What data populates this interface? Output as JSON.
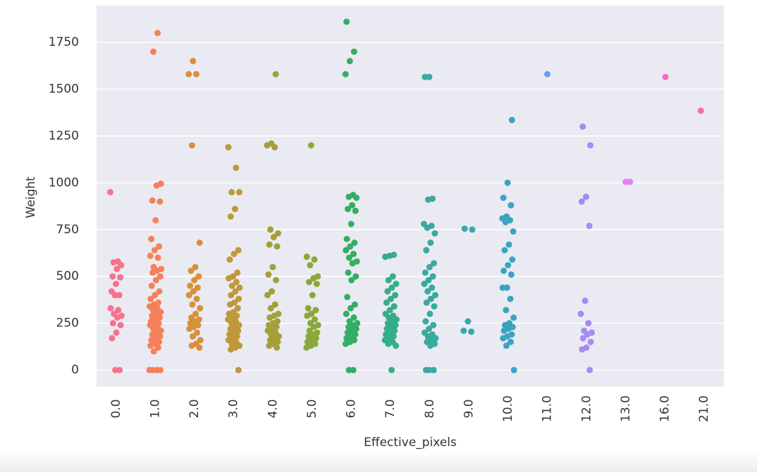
{
  "chart_data": {
    "type": "strip",
    "xlabel": "Effective_pixels",
    "ylabel": "Weight",
    "categories": [
      "0.0",
      "1.0",
      "2.0",
      "3.0",
      "4.0",
      "5.0",
      "6.0",
      "7.0",
      "8.0",
      "9.0",
      "10.0",
      "11.0",
      "12.0",
      "13.0",
      "16.0",
      "21.0"
    ],
    "colors": [
      "#f7728a",
      "#f5815a",
      "#d8903a",
      "#c0983a",
      "#a3a03a",
      "#8aa83a",
      "#34ae62",
      "#36ad8a",
      "#38aaa0",
      "#39a8ae",
      "#3ba3c2",
      "#6a9ef0",
      "#a58bf4",
      "#e57ef2",
      "#f56cc6",
      "#f66fa5"
    ],
    "values": [
      [
        950,
        580,
        575,
        560,
        540,
        500,
        495,
        460,
        420,
        400,
        400,
        330,
        320,
        300,
        290,
        280,
        250,
        240,
        200,
        170,
        0,
        0
      ],
      [
        1800,
        1700,
        995,
        985,
        905,
        900,
        800,
        700,
        660,
        640,
        610,
        600,
        550,
        540,
        530,
        520,
        500,
        480,
        450,
        420,
        400,
        380,
        360,
        350,
        340,
        330,
        320,
        310,
        300,
        290,
        280,
        270,
        260,
        250,
        250,
        240,
        230,
        220,
        210,
        200,
        190,
        180,
        170,
        160,
        150,
        140,
        130,
        120,
        100,
        0,
        0,
        0,
        0
      ],
      [
        1650,
        1580,
        1580,
        1200,
        680,
        550,
        530,
        500,
        480,
        450,
        440,
        420,
        400,
        380,
        350,
        330,
        300,
        280,
        270,
        260,
        250,
        240,
        230,
        220,
        200,
        180,
        160,
        140,
        130,
        120
      ],
      [
        1190,
        1080,
        950,
        950,
        860,
        820,
        640,
        620,
        590,
        520,
        500,
        490,
        470,
        450,
        440,
        420,
        400,
        380,
        360,
        350,
        330,
        310,
        300,
        290,
        280,
        270,
        260,
        250,
        240,
        230,
        220,
        210,
        200,
        190,
        180,
        170,
        160,
        150,
        140,
        130,
        120,
        110,
        0
      ],
      [
        1580,
        1210,
        1200,
        1190,
        750,
        730,
        710,
        670,
        660,
        550,
        510,
        480,
        420,
        400,
        350,
        330,
        300,
        290,
        280,
        260,
        250,
        240,
        230,
        220,
        210,
        200,
        190,
        180,
        170,
        160,
        150,
        140,
        130,
        120
      ],
      [
        1200,
        605,
        590,
        560,
        500,
        490,
        470,
        460,
        400,
        330,
        320,
        300,
        290,
        270,
        250,
        240,
        230,
        210,
        200,
        190,
        180,
        170,
        160,
        150,
        140,
        130,
        120
      ],
      [
        1860,
        1700,
        1650,
        1580,
        935,
        925,
        920,
        880,
        860,
        850,
        780,
        700,
        680,
        660,
        640,
        620,
        600,
        580,
        570,
        520,
        500,
        480,
        390,
        350,
        330,
        300,
        280,
        260,
        250,
        240,
        230,
        220,
        210,
        200,
        190,
        180,
        170,
        160,
        150,
        140,
        0,
        0
      ],
      [
        615,
        610,
        605,
        500,
        480,
        460,
        440,
        420,
        400,
        380,
        360,
        340,
        320,
        300,
        290,
        280,
        270,
        260,
        250,
        240,
        230,
        220,
        210,
        200,
        190,
        180,
        170,
        160,
        150,
        140,
        130,
        0
      ],
      [
        1565,
        1565,
        915,
        910,
        780,
        770,
        760,
        730,
        680,
        640,
        570,
        550,
        520,
        500,
        480,
        460,
        440,
        420,
        400,
        380,
        360,
        340,
        300,
        260,
        240,
        220,
        200,
        190,
        180,
        170,
        160,
        150,
        140,
        130,
        0,
        0,
        0
      ],
      [
        755,
        750,
        260,
        210,
        205
      ],
      [
        1335,
        1000,
        920,
        880,
        820,
        810,
        800,
        790,
        740,
        670,
        640,
        590,
        560,
        530,
        510,
        440,
        440,
        380,
        320,
        280,
        250,
        240,
        230,
        220,
        210,
        190,
        180,
        170,
        150,
        130,
        0
      ],
      [
        1580
      ],
      [
        1300,
        1200,
        925,
        900,
        770,
        370,
        300,
        250,
        210,
        200,
        190,
        170,
        150,
        120,
        110,
        0
      ],
      [
        1005,
        1005
      ],
      [
        1565
      ],
      [
        1385
      ]
    ],
    "ylim": [
      -90,
      1946
    ],
    "yticks": [
      0,
      250,
      500,
      750,
      1000,
      1250,
      1500,
      1750
    ],
    "grid": true
  }
}
